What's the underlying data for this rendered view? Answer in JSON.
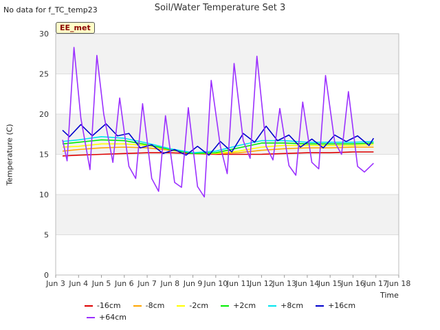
{
  "header": {
    "note": "No data for f_TC_temp23",
    "title": "Soil/Water Temperature Set 3",
    "station_label": "EE_met"
  },
  "chart_data": {
    "type": "line",
    "title": "Soil/Water Temperature Set 3",
    "xlabel": "Time",
    "ylabel": "Temperature (C)",
    "xlim": [
      3,
      18
    ],
    "ylim": [
      0,
      30
    ],
    "x_ticks": [
      3,
      4,
      5,
      6,
      7,
      8,
      9,
      10,
      11,
      12,
      13,
      14,
      15,
      16,
      17,
      18
    ],
    "x_tick_labels": [
      "Jun 3",
      "Jun 4",
      "Jun 5",
      "Jun 6",
      "Jun 7",
      "Jun 8",
      "Jun 9",
      "Jun 10",
      "Jun 11",
      "Jun 12",
      "Jun 13",
      "Jun 14",
      "Jun 15",
      "Jun 16",
      "Jun 17",
      "Jun 18"
    ],
    "y_ticks": [
      0,
      5,
      10,
      15,
      20,
      25,
      30
    ],
    "grid": true,
    "legend_position": "bottom",
    "series": [
      {
        "name": "-16cm",
        "color": "#dd0000",
        "x": [
          3.3,
          4,
          5,
          6,
          7,
          8,
          9,
          10,
          11,
          12,
          13,
          14,
          15,
          16,
          16.9
        ],
        "y": [
          14.8,
          14.9,
          15.0,
          15.1,
          15.2,
          15.2,
          15.1,
          15.0,
          15.0,
          15.0,
          15.1,
          15.2,
          15.2,
          15.3,
          15.3
        ]
      },
      {
        "name": "-8cm",
        "color": "#ffa500",
        "x": [
          3.3,
          4,
          5,
          6,
          7,
          8,
          9,
          10,
          11,
          12,
          13,
          14,
          15,
          16,
          16.9
        ],
        "y": [
          15.4,
          15.6,
          15.8,
          15.9,
          15.8,
          15.5,
          15.2,
          15.1,
          15.2,
          15.5,
          15.7,
          15.8,
          15.8,
          15.9,
          15.9
        ]
      },
      {
        "name": "-2cm",
        "color": "#ffff00",
        "x": [
          3.3,
          4,
          5,
          6,
          7,
          8,
          9,
          10,
          11,
          12,
          13,
          14,
          15,
          16,
          16.9
        ],
        "y": [
          15.9,
          16.0,
          16.3,
          16.3,
          16.1,
          15.6,
          15.1,
          15.1,
          15.4,
          15.9,
          16.1,
          16.1,
          16.1,
          16.1,
          16.2
        ]
      },
      {
        "name": "+2cm",
        "color": "#00ee00",
        "x": [
          3.3,
          4,
          5,
          6,
          7,
          8,
          9,
          10,
          11,
          12,
          13,
          14,
          15,
          16,
          16.9
        ],
        "y": [
          16.3,
          16.5,
          16.8,
          16.7,
          16.2,
          15.6,
          15.1,
          15.2,
          15.8,
          16.4,
          16.4,
          16.3,
          16.3,
          16.3,
          16.4
        ]
      },
      {
        "name": "+8cm",
        "color": "#00e5ee",
        "x": [
          3.3,
          4,
          5,
          6,
          7,
          8,
          9,
          10,
          11,
          12,
          13,
          14,
          15,
          16,
          16.9
        ],
        "y": [
          16.6,
          16.8,
          17.2,
          17.0,
          16.4,
          15.7,
          15.2,
          15.4,
          16.1,
          16.7,
          16.7,
          16.5,
          16.5,
          16.5,
          16.6
        ]
      },
      {
        "name": "+16cm",
        "color": "#0000cc",
        "x": [
          3.3,
          3.6,
          4.1,
          4.6,
          5.2,
          5.7,
          6.2,
          6.7,
          7.2,
          7.7,
          8.2,
          8.7,
          9.2,
          9.7,
          10.2,
          10.7,
          11.2,
          11.7,
          12.2,
          12.7,
          13.2,
          13.7,
          14.2,
          14.7,
          15.2,
          15.7,
          16.2,
          16.7,
          16.9
        ],
        "y": [
          18.0,
          17.2,
          18.7,
          17.3,
          18.8,
          17.3,
          17.6,
          15.8,
          16.2,
          15.1,
          15.6,
          14.9,
          16.0,
          14.9,
          16.6,
          15.3,
          17.6,
          16.5,
          18.5,
          16.7,
          17.4,
          15.9,
          16.9,
          15.8,
          17.4,
          16.6,
          17.3,
          16.1,
          17.0
        ]
      },
      {
        "name": "+64cm",
        "color": "#9b30ff",
        "x": [
          3.3,
          3.5,
          3.8,
          4.1,
          4.5,
          4.8,
          5.1,
          5.5,
          5.8,
          6.2,
          6.5,
          6.8,
          7.2,
          7.5,
          7.8,
          8.2,
          8.5,
          8.8,
          9.2,
          9.5,
          9.8,
          10.2,
          10.5,
          10.8,
          11.2,
          11.5,
          11.8,
          12.2,
          12.5,
          12.8,
          13.2,
          13.5,
          13.8,
          14.2,
          14.5,
          14.8,
          15.2,
          15.5,
          15.8,
          16.2,
          16.5,
          16.9
        ],
        "y": [
          16.8,
          14.2,
          28.3,
          19.5,
          13.1,
          27.3,
          20.0,
          14.0,
          22.0,
          13.5,
          12.0,
          21.3,
          12.0,
          10.4,
          19.8,
          11.5,
          10.9,
          20.8,
          11.0,
          9.7,
          24.2,
          16.0,
          12.6,
          26.3,
          16.7,
          14.5,
          27.2,
          16.0,
          14.3,
          20.7,
          13.6,
          12.4,
          21.5,
          14.0,
          13.2,
          24.8,
          16.5,
          15.0,
          22.8,
          13.5,
          12.8,
          13.9
        ]
      }
    ]
  }
}
